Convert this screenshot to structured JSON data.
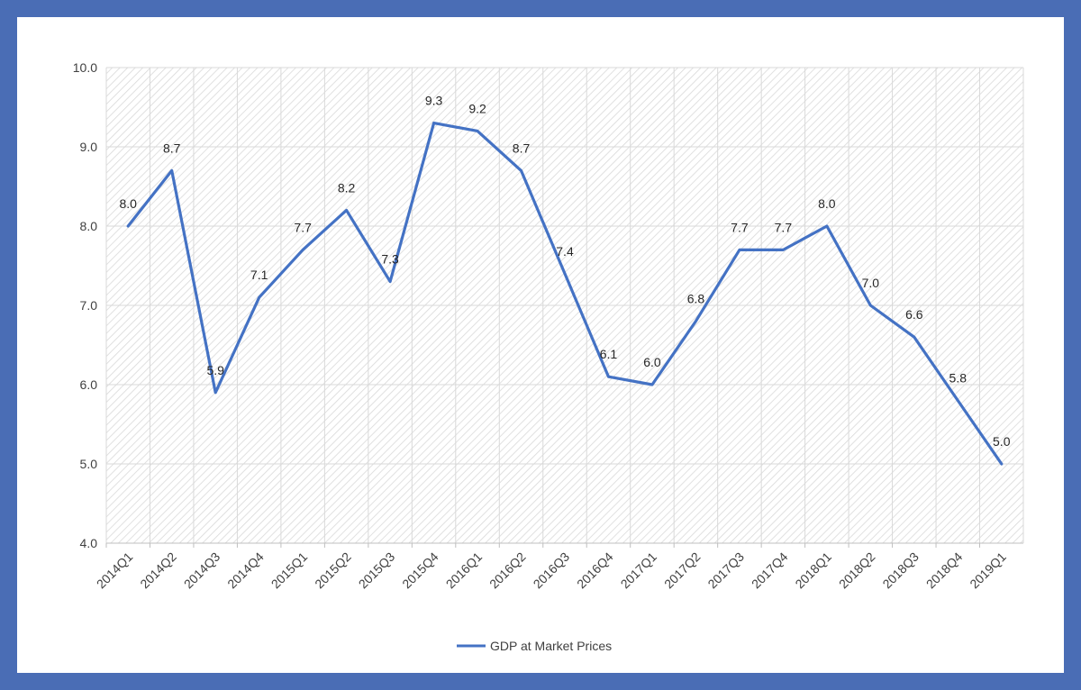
{
  "chart_data": {
    "type": "line",
    "title": "",
    "xlabel": "",
    "ylabel": "",
    "categories": [
      "2014Q1",
      "2014Q2",
      "2014Q3",
      "2014Q4",
      "2015Q1",
      "2015Q2",
      "2015Q3",
      "2015Q4",
      "2016Q1",
      "2016Q2",
      "2016Q3",
      "2016Q4",
      "2017Q1",
      "2017Q2",
      "2017Q3",
      "2017Q4",
      "2018Q1",
      "2018Q2",
      "2018Q3",
      "2018Q4",
      "2019Q1"
    ],
    "series": [
      {
        "name": "GDP at Market Prices",
        "color": "#4472c4",
        "values": [
          8.0,
          8.7,
          5.9,
          7.1,
          7.7,
          8.2,
          7.3,
          9.3,
          9.2,
          8.7,
          7.4,
          6.1,
          6.0,
          6.8,
          7.7,
          7.7,
          8.0,
          7.0,
          6.6,
          5.8,
          5.0
        ],
        "labels": [
          "8.0",
          "8.7",
          "5.9",
          "7.1",
          "7.7",
          "8.2",
          "7.3",
          "9.3",
          "9.2",
          "8.7",
          "7.4",
          "6.1",
          "6.0",
          "6.8",
          "7.7",
          "7.7",
          "8.0",
          "7.0",
          "6.6",
          "5.8",
          "5.0"
        ]
      }
    ],
    "ylim": [
      4.0,
      10.0
    ],
    "yticks": [
      "4.0",
      "5.0",
      "6.0",
      "7.0",
      "8.0",
      "9.0",
      "10.0"
    ],
    "grid": true,
    "legend": "bottom"
  },
  "colors": {
    "border": "#4a6db5",
    "plot_pattern": "#d9d9d9",
    "gridline": "#d9d9d9",
    "line": "#4472c4"
  }
}
